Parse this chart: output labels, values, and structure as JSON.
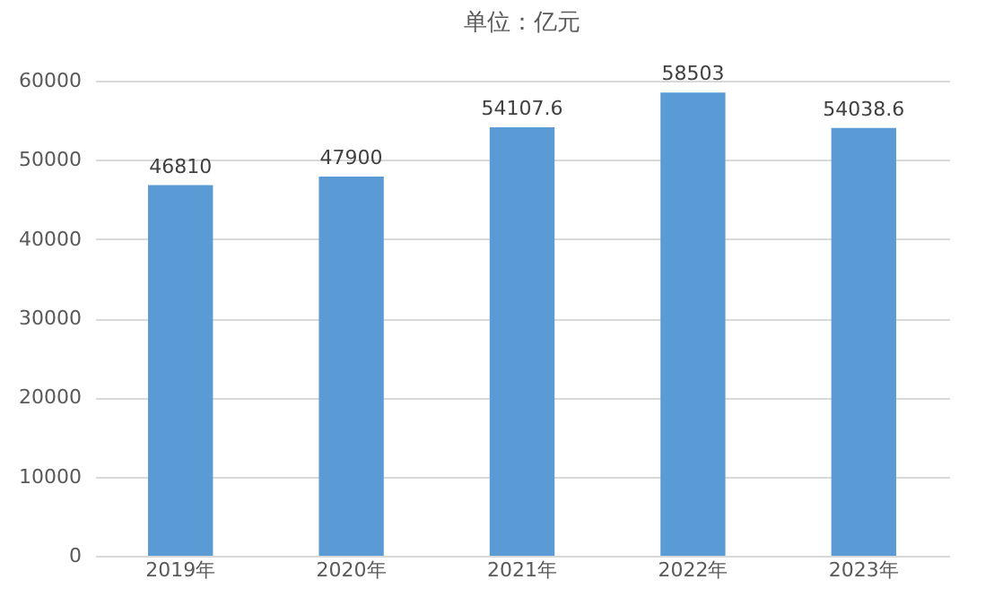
{
  "chart_data": {
    "type": "bar",
    "title": "单位：亿元",
    "categories": [
      "2019年",
      "2020年",
      "2021年",
      "2022年",
      "2023年"
    ],
    "values": [
      46810,
      47900,
      54107.6,
      58503,
      54038.6
    ],
    "color": "#5b9bd5",
    "ylim": [
      0,
      60000
    ],
    "yticks": [
      0,
      10000,
      20000,
      30000,
      40000,
      50000,
      60000
    ],
    "grid": "y",
    "data_labels": true
  }
}
